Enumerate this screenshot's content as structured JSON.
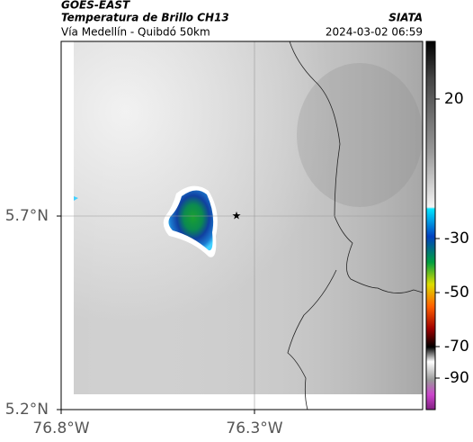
{
  "header": {
    "satellite": "GOES-EAST",
    "product": "Temperatura de Brillo CH13",
    "region": "Vía Medellín - Quibdó 50km",
    "source": "SIATA",
    "timestamp": "2024-03-02 06:59"
  },
  "map": {
    "lat_ticks": [
      {
        "value": 5.7,
        "label": "5.7°N"
      },
      {
        "value": 5.2,
        "label": "5.2°N"
      }
    ],
    "lon_ticks": [
      {
        "value": -76.8,
        "label": "76.8°W"
      },
      {
        "value": -76.3,
        "label": "76.3°W"
      }
    ]
  },
  "colorbar": {
    "ticks": [
      20,
      -30,
      -50,
      -70,
      -90
    ]
  }
}
